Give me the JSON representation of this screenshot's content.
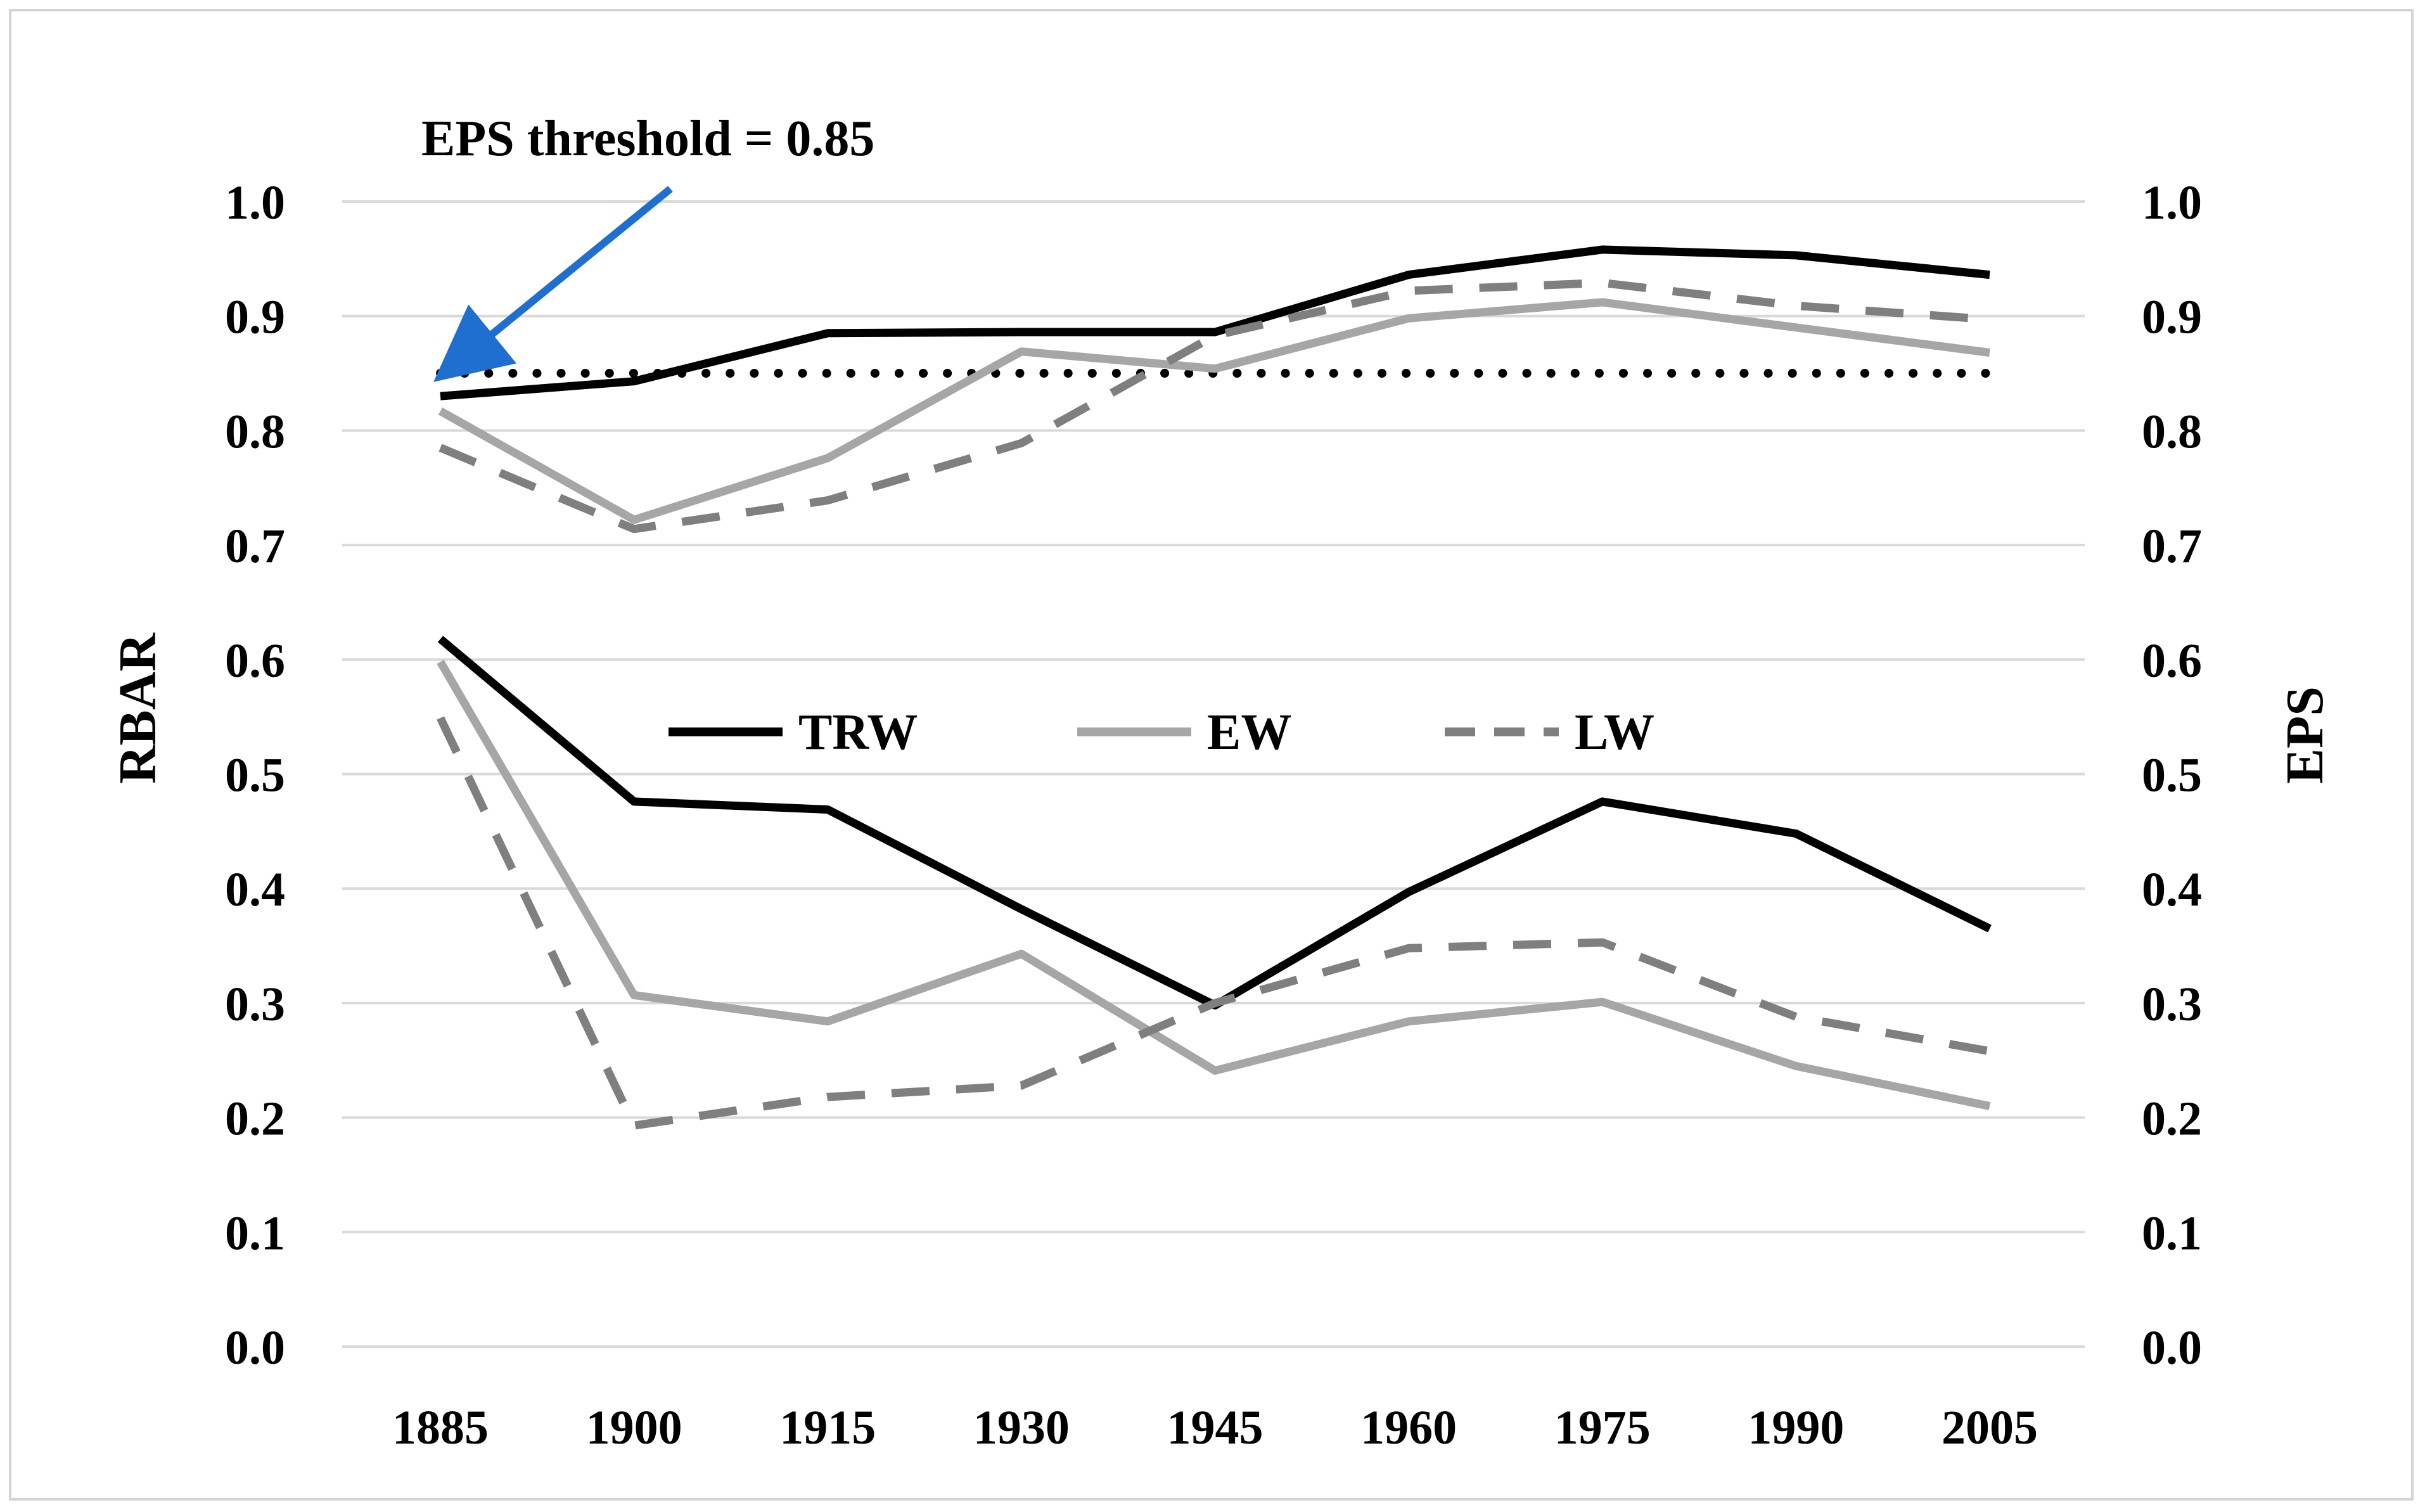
{
  "chart_data": {
    "type": "line",
    "categories": [
      "1885",
      "1900",
      "1915",
      "1930",
      "1945",
      "1960",
      "1975",
      "1990",
      "2005"
    ],
    "ylim": [
      0,
      1
    ],
    "y_ticks": [
      "0.0",
      "0.1",
      "0.2",
      "0.3",
      "0.4",
      "0.5",
      "0.6",
      "0.7",
      "0.8",
      "0.9",
      "1.0"
    ],
    "ylabel": "RBAR",
    "ylabel_right": "EPS",
    "grid": true,
    "legend": [
      "TRW",
      "EW",
      "LW"
    ],
    "legend_position": "center",
    "series": [
      {
        "name": "TRW",
        "metric": "EPS",
        "color": "#000000",
        "style": "solid",
        "values": [
          0.83,
          0.843,
          0.885,
          0.886,
          0.886,
          0.936,
          0.958,
          0.953,
          0.936
        ]
      },
      {
        "name": "EW",
        "metric": "EPS",
        "color": "#a6a6a6",
        "style": "solid",
        "values": [
          0.817,
          0.722,
          0.776,
          0.869,
          0.854,
          0.898,
          0.912,
          0.89,
          0.868
        ]
      },
      {
        "name": "LW",
        "metric": "EPS",
        "color": "#7f7f7f",
        "style": "dashed",
        "values": [
          0.785,
          0.714,
          0.739,
          0.789,
          0.883,
          0.922,
          0.929,
          0.909,
          0.897
        ]
      },
      {
        "name": "TRW",
        "metric": "RBAR",
        "color": "#000000",
        "style": "solid",
        "values": [
          0.618,
          0.476,
          0.469,
          0.382,
          0.298,
          0.397,
          0.476,
          0.448,
          0.365
        ]
      },
      {
        "name": "EW",
        "metric": "RBAR",
        "color": "#a6a6a6",
        "style": "solid",
        "values": [
          0.598,
          0.307,
          0.284,
          0.343,
          0.241,
          0.284,
          0.301,
          0.245,
          0.21
        ]
      },
      {
        "name": "LW",
        "metric": "RBAR",
        "color": "#7f7f7f",
        "style": "dashed",
        "values": [
          0.549,
          0.193,
          0.218,
          0.228,
          0.3,
          0.348,
          0.353,
          0.288,
          0.258
        ]
      }
    ],
    "threshold": {
      "value": 0.85,
      "style": "dotted",
      "color": "#000000"
    },
    "annotation": {
      "text": "EPS threshold = 0.85",
      "arrow_color": "#1f6fd1"
    }
  }
}
